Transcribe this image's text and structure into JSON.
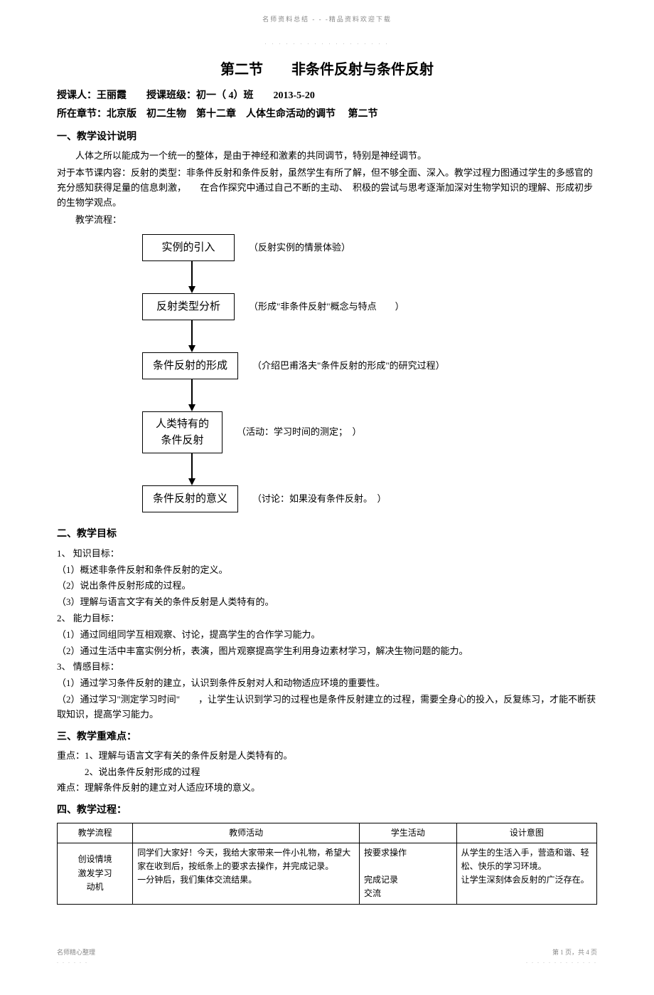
{
  "header": {
    "note": "名师资料总结 - - -精品资料欢迎下载",
    "dots": ". . . . . . . . . . . . . . . . . ."
  },
  "title": "第二节　　非条件反射与条件反射",
  "info": {
    "line1": "授课人：王丽霞　　授课班级：初一（ 4）班　　2013-5-20",
    "line2": "所在章节：北京版　初二生物　第十二章　人体生命活动的调节　 第二节"
  },
  "section1": {
    "title": "一、教学设计说明",
    "p1": "人体之所以能成为一个统一的整体，是由于神经和激素的共同调节，特别是神经调节。",
    "p2": "对于本节课内容：反射的类型：非条件反射和条件反射，虽然学生有所了解，但不够全面、深入。教学过程力图通过学生的多感官的充分感知获得足量的信息刺激，　　在合作探究中通过自己不断的主动、　积极的尝试与思考逐渐加深对生物学知识的理解、形成初步的生物学观点。",
    "flow_label": "教学流程：",
    "flow": [
      {
        "box": "实例的引入",
        "label": "（反射实例的情景体验）"
      },
      {
        "box": "反射类型分析",
        "label": "（形成\"非条件反射\"概念与特点　　）"
      },
      {
        "box": "条件反射的形成",
        "label": "（介绍巴甫洛夫\"条件反射的形成\"的研究过程）"
      },
      {
        "box_l1": "人类特有的",
        "box_l2": "条件反射",
        "label": "（活动：学习时间的测定；　）"
      },
      {
        "box": "条件反射的意义",
        "label": "（讨论：如果没有条件反射。　）"
      }
    ]
  },
  "section2": {
    "title": "二、教学目标",
    "g1_title": "1、 知识目标：",
    "g1_1": "（1）概述非条件反射和条件反射的定义。",
    "g1_2": "（2）说出条件反射形成的过程。",
    "g1_3": "（3）理解与语言文字有关的条件反射是人类特有的。",
    "g2_title": "2、 能力目标：",
    "g2_1": "（1）通过同组同学互相观察、讨论，提高学生的合作学习能力。",
    "g2_2": "（2）通过生活中丰富实例分析，表演，图片观察提高学生利用身边素材学习，解决生物问题的能力。",
    "g3_title": "3、 情感目标：",
    "g3_1": "（1）通过学习条件反射的建立，认识到条件反射对人和动物适应环境的重要性。",
    "g3_2": "（2）通过学习\"测定学习时间\"　　，让学生认识到学习的过程也是条件反射建立的过程，需要全身心的投入，反复练习，才能不断获取知识，提高学习能力。"
  },
  "section3": {
    "title": "三、教学重难点：",
    "p1": "重点：1、理解与语言文字有关的条件反射是人类特有的。",
    "p2": "　　　2、说出条件反射形成的过程",
    "p3": "难点：理解条件反射的建立对人适应环境的意义。"
  },
  "section4": {
    "title": "四、教学过程：",
    "headers": [
      "教学流程",
      "教师活动",
      "学生活动",
      "设计意图"
    ],
    "row1": {
      "c1": "创设情境\n激发学习\n动机",
      "c2": "同学们大家好！今天，我给大家带来一件小礼物，希望大家在收到后，按纸条上的要求去操作，并完成记录。\n一分钟后，我们集体交流结果。",
      "c3": "按要求操作\n\n完成记录\n交流",
      "c4": "从学生的生活入手，营造和谐、轻松、快乐的学习环境。\n让学生深刻体会反射的广泛存在。"
    }
  },
  "footer": {
    "left": "名师精心整理",
    "left_dots": ". . . . . .",
    "right": "第 1 页，共 4 页",
    "right_dots": ". . . . . . . . . . . . ."
  }
}
